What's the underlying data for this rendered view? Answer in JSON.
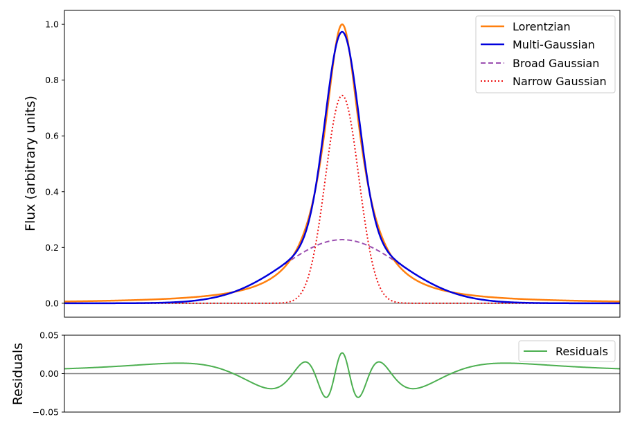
{
  "chart_data": [
    {
      "type": "line",
      "title": "",
      "xlabel": "",
      "ylabel": "Flux (arbitrary units)",
      "xlim": [
        -10,
        10
      ],
      "ylim": [
        -0.05,
        1.05
      ],
      "yticks": [
        0.0,
        0.2,
        0.4,
        0.6,
        0.8,
        1.0
      ],
      "ytick_labels": [
        "0.0",
        "0.2",
        "0.4",
        "0.6",
        "0.8",
        "1.0"
      ],
      "xticks_visible": false,
      "grid": false,
      "legend": "top-right",
      "reference_line": {
        "y": 0,
        "color": "#808080"
      },
      "series": [
        {
          "name": "Lorentzian",
          "color": "#ff7f0e",
          "style": "solid",
          "model": {
            "kind": "lorentzian",
            "amplitude": 1.0,
            "center": 0.0,
            "hwhm": 0.8
          }
        },
        {
          "name": "Multi-Gaussian",
          "color": "#0000dd",
          "style": "solid",
          "model": {
            "kind": "sum_of_gaussians",
            "components": [
              {
                "amplitude": 0.745,
                "center": 0.0,
                "sigma": 0.6
              },
              {
                "amplitude": 0.228,
                "center": 0.0,
                "sigma": 2.1
              }
            ]
          }
        },
        {
          "name": "Broad Gaussian",
          "color": "#9b4fb0",
          "style": "dashed",
          "model": {
            "kind": "gaussian",
            "amplitude": 0.228,
            "center": 0.0,
            "sigma": 2.1
          }
        },
        {
          "name": "Narrow Gaussian",
          "color": "#ee1111",
          "style": "dotted",
          "model": {
            "kind": "gaussian",
            "amplitude": 0.745,
            "center": 0.0,
            "sigma": 0.6
          }
        }
      ]
    },
    {
      "type": "line",
      "title": "",
      "xlabel": "",
      "ylabel": "Residuals",
      "xlim": [
        -10,
        10
      ],
      "ylim": [
        -0.05,
        0.05
      ],
      "yticks": [
        -0.05,
        0.0,
        0.05
      ],
      "ytick_labels": [
        "−0.05",
        "0.00",
        "0.05"
      ],
      "xticks_visible": false,
      "grid": false,
      "legend": "top-right",
      "reference_line": {
        "y": 0,
        "color": "#808080"
      },
      "series": [
        {
          "name": "Residuals",
          "color": "#4caf50",
          "style": "solid",
          "model": {
            "kind": "difference",
            "of": [
              "Lorentzian",
              "Multi-Gaussian"
            ]
          }
        }
      ]
    }
  ]
}
